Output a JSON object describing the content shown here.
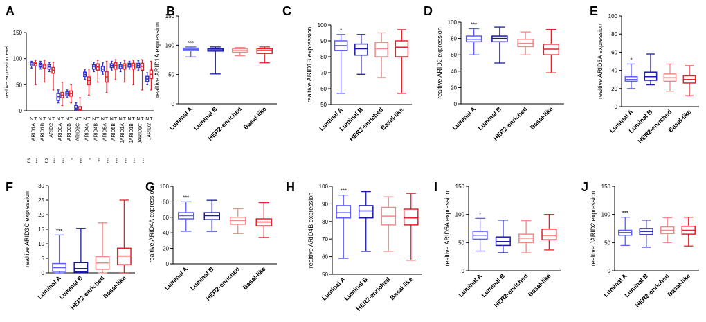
{
  "chart_data": [
    {
      "panel": "A",
      "type": "box",
      "ylabel": "realtive expression level",
      "ylim": [
        0,
        150
      ],
      "yticks": [
        0,
        50,
        100,
        150
      ],
      "genes": [
        "ARID1A",
        "ARID1B",
        "ARID2",
        "ARID3A",
        "ARID3B",
        "ARID3C",
        "ARID4A",
        "ARID4B",
        "ARID5A",
        "ARID5B",
        "JARID1A",
        "JARID1B",
        "JARID1C",
        "JARID2"
      ],
      "significance": [
        "ns",
        "***",
        "ns",
        "***",
        "***",
        "*",
        "***",
        "*",
        "**",
        "***",
        "***",
        "***",
        "***",
        "***"
      ],
      "pair_labels": [
        "N",
        "T"
      ],
      "normal": [
        {
          "min": 82,
          "q1": 86,
          "median": 89,
          "q3": 92,
          "max": 95
        },
        {
          "min": 80,
          "q1": 84,
          "median": 88,
          "q3": 91,
          "max": 95
        },
        {
          "min": 75,
          "q1": 80,
          "median": 84,
          "q3": 88,
          "max": 93
        },
        {
          "min": 15,
          "q1": 20,
          "median": 27,
          "q3": 33,
          "max": 40
        },
        {
          "min": 25,
          "q1": 29,
          "median": 32,
          "q3": 36,
          "max": 40
        },
        {
          "min": 0,
          "q1": 2,
          "median": 5,
          "q3": 10,
          "max": 15
        },
        {
          "min": 60,
          "q1": 66,
          "median": 70,
          "q3": 74,
          "max": 80
        },
        {
          "min": 75,
          "q1": 80,
          "median": 85,
          "q3": 88,
          "max": 93
        },
        {
          "min": 70,
          "q1": 76,
          "median": 80,
          "q3": 85,
          "max": 92
        },
        {
          "min": 78,
          "q1": 83,
          "median": 87,
          "q3": 90,
          "max": 95
        },
        {
          "min": 75,
          "q1": 81,
          "median": 85,
          "q3": 88,
          "max": 93
        },
        {
          "min": 80,
          "q1": 84,
          "median": 88,
          "q3": 91,
          "max": 95
        },
        {
          "min": 78,
          "q1": 83,
          "median": 87,
          "q3": 91,
          "max": 96
        },
        {
          "min": 50,
          "q1": 56,
          "median": 61,
          "q3": 66,
          "max": 73
        }
      ],
      "tumor": [
        {
          "min": 50,
          "q1": 86,
          "median": 91,
          "q3": 93,
          "max": 97
        },
        {
          "min": 55,
          "q1": 82,
          "median": 86,
          "q3": 89,
          "max": 97
        },
        {
          "min": 40,
          "q1": 72,
          "median": 78,
          "q3": 83,
          "max": 93
        },
        {
          "min": 10,
          "q1": 25,
          "median": 30,
          "q3": 35,
          "max": 55
        },
        {
          "min": 15,
          "q1": 28,
          "median": 33,
          "q3": 38,
          "max": 50
        },
        {
          "min": 0,
          "q1": 1,
          "median": 3,
          "q3": 8,
          "max": 25
        },
        {
          "min": 30,
          "q1": 50,
          "median": 58,
          "q3": 65,
          "max": 80
        },
        {
          "min": 55,
          "q1": 78,
          "median": 84,
          "q3": 90,
          "max": 97
        },
        {
          "min": 35,
          "q1": 55,
          "median": 65,
          "q3": 75,
          "max": 95
        },
        {
          "min": 60,
          "q1": 80,
          "median": 87,
          "q3": 92,
          "max": 98
        },
        {
          "min": 55,
          "q1": 80,
          "median": 86,
          "q3": 90,
          "max": 97
        },
        {
          "min": 50,
          "q1": 80,
          "median": 86,
          "q3": 91,
          "max": 97
        },
        {
          "min": 40,
          "q1": 78,
          "median": 85,
          "q3": 91,
          "max": 98
        },
        {
          "min": 40,
          "q1": 62,
          "median": 70,
          "q3": 78,
          "max": 95
        }
      ],
      "colors": {
        "normal": "#3333cc",
        "tumor": "#e8202a"
      }
    },
    {
      "panel": "B",
      "type": "box",
      "ylabel": "realtive ARID1A expression",
      "ylim": [
        0,
        150
      ],
      "yticks": [
        0,
        50,
        100,
        150
      ],
      "categories": [
        "Luminal A",
        "Luminal B",
        "HER2-enriched",
        "Basal-like"
      ],
      "significance": "***",
      "boxes": [
        {
          "min": 80,
          "q1": 91,
          "median": 93,
          "q3": 95,
          "max": 97
        },
        {
          "min": 51,
          "q1": 90,
          "median": 92,
          "q3": 94,
          "max": 97
        },
        {
          "min": 82,
          "q1": 88,
          "median": 91,
          "q3": 94,
          "max": 96
        },
        {
          "min": 70,
          "q1": 86,
          "median": 91,
          "q3": 94,
          "max": 97
        }
      ]
    },
    {
      "panel": "C",
      "type": "box",
      "ylabel": "realtive ARID1B expression",
      "ylim": [
        50,
        100
      ],
      "yticks": [
        50,
        60,
        70,
        80,
        90,
        100
      ],
      "categories": [
        "Luminal A",
        "Luminal B",
        "HER2-enriched",
        "Basal-like"
      ],
      "significance": "*",
      "boxes": [
        {
          "min": 57,
          "q1": 84,
          "median": 87,
          "q3": 90,
          "max": 94
        },
        {
          "min": 69,
          "q1": 81,
          "median": 85,
          "q3": 88,
          "max": 94
        },
        {
          "min": 67,
          "q1": 80,
          "median": 85,
          "q3": 89,
          "max": 95
        },
        {
          "min": 57,
          "q1": 80,
          "median": 86,
          "q3": 90,
          "max": 97
        }
      ]
    },
    {
      "panel": "D",
      "type": "box",
      "ylabel": "realtive ARID2 expression",
      "ylim": [
        0,
        100
      ],
      "yticks": [
        0,
        20,
        40,
        60,
        80,
        100
      ],
      "categories": [
        "Luminal A",
        "Luminal B",
        "HER2-enriched",
        "Basal-like"
      ],
      "significance": "***",
      "boxes": [
        {
          "min": 60,
          "q1": 76,
          "median": 79,
          "q3": 83,
          "max": 92
        },
        {
          "min": 50,
          "q1": 76,
          "median": 80,
          "q3": 83,
          "max": 94
        },
        {
          "min": 60,
          "q1": 70,
          "median": 74,
          "q3": 79,
          "max": 88
        },
        {
          "min": 38,
          "q1": 60,
          "median": 67,
          "q3": 73,
          "max": 91
        }
      ]
    },
    {
      "panel": "E",
      "type": "box",
      "ylabel": "realtive ARID3A expression",
      "ylim": [
        0,
        100
      ],
      "yticks": [
        0,
        20,
        40,
        60,
        80,
        100
      ],
      "categories": [
        "Luminal A",
        "Luminal B",
        "HER2-enriched",
        "Basal-like"
      ],
      "significance": "*",
      "boxes": [
        {
          "min": 20,
          "q1": 28,
          "median": 30,
          "q3": 33,
          "max": 47
        },
        {
          "min": 24,
          "q1": 29,
          "median": 33,
          "q3": 38,
          "max": 58
        },
        {
          "min": 17,
          "q1": 28,
          "median": 32,
          "q3": 36,
          "max": 47
        },
        {
          "min": 12,
          "q1": 26,
          "median": 30,
          "q3": 34,
          "max": 45
        }
      ]
    },
    {
      "panel": "F",
      "type": "box",
      "ylabel": "realtive ARID3C expression",
      "ylim": [
        0,
        30
      ],
      "yticks": [
        0,
        5,
        10,
        15,
        20,
        25,
        30
      ],
      "categories": [
        "Luminal A",
        "Luminal B",
        "HER2-enriched",
        "Basal-like"
      ],
      "significance": "***",
      "boxes": [
        {
          "min": 0,
          "q1": 0.5,
          "median": 1.8,
          "q3": 3.2,
          "max": 13
        },
        {
          "min": 0,
          "q1": 0.3,
          "median": 1.5,
          "q3": 3.5,
          "max": 15.3
        },
        {
          "min": 0,
          "q1": 1.2,
          "median": 3.4,
          "q3": 5.6,
          "max": 17.2
        },
        {
          "min": 0,
          "q1": 2.8,
          "median": 5.8,
          "q3": 8.5,
          "max": 25
        }
      ]
    },
    {
      "panel": "G",
      "type": "box",
      "ylabel": "realtive ARID4A expression",
      "ylim": [
        0,
        100
      ],
      "yticks": [
        0,
        20,
        40,
        60,
        80,
        100
      ],
      "categories": [
        "Luminal A",
        "Luminal B",
        "HER2-enriched",
        "Basal-like"
      ],
      "significance": "***",
      "boxes": [
        {
          "min": 42,
          "q1": 58,
          "median": 62,
          "q3": 66,
          "max": 80
        },
        {
          "min": 42,
          "q1": 57,
          "median": 62,
          "q3": 66,
          "max": 82
        },
        {
          "min": 39,
          "q1": 51,
          "median": 56,
          "q3": 60,
          "max": 71
        },
        {
          "min": 34,
          "q1": 49,
          "median": 54,
          "q3": 58,
          "max": 79
        }
      ]
    },
    {
      "panel": "H",
      "type": "box",
      "ylabel": "realtive ARID4B expression",
      "ylim": [
        50,
        100
      ],
      "yticks": [
        50,
        60,
        70,
        80,
        90,
        100
      ],
      "categories": [
        "Luminal A",
        "Luminal B",
        "HER2-enriched",
        "Basal-like"
      ],
      "significance": "***",
      "boxes": [
        {
          "min": 59,
          "q1": 82,
          "median": 85,
          "q3": 89,
          "max": 95
        },
        {
          "min": 63,
          "q1": 82,
          "median": 86,
          "q3": 89,
          "max": 97
        },
        {
          "min": 63,
          "q1": 78,
          "median": 83,
          "q3": 88,
          "max": 94
        },
        {
          "min": 58,
          "q1": 78,
          "median": 82,
          "q3": 87,
          "max": 96
        }
      ]
    },
    {
      "panel": "I",
      "type": "box",
      "ylabel": "realtive ARID5A expression",
      "ylim": [
        0,
        150
      ],
      "yticks": [
        0,
        50,
        100,
        150
      ],
      "categories": [
        "Luminal A",
        "Luminal B",
        "HER2-enriched",
        "Basal-like"
      ],
      "significance": "*",
      "boxes": [
        {
          "min": 35,
          "q1": 56,
          "median": 63,
          "q3": 70,
          "max": 93
        },
        {
          "min": 32,
          "q1": 45,
          "median": 52,
          "q3": 60,
          "max": 90
        },
        {
          "min": 32,
          "q1": 50,
          "median": 58,
          "q3": 65,
          "max": 89
        },
        {
          "min": 37,
          "q1": 55,
          "median": 63,
          "q3": 74,
          "max": 100
        }
      ]
    },
    {
      "panel": "J",
      "type": "box",
      "ylabel": "realtive JARID2 expression",
      "ylim": [
        0,
        150
      ],
      "yticks": [
        0,
        50,
        100,
        150
      ],
      "categories": [
        "Luminal A",
        "Luminal B",
        "HER2-enriched",
        "Basal-like"
      ],
      "significance": "***",
      "boxes": [
        {
          "min": 45,
          "q1": 63,
          "median": 68,
          "q3": 72,
          "max": 95
        },
        {
          "min": 42,
          "q1": 64,
          "median": 70,
          "q3": 75,
          "max": 90
        },
        {
          "min": 50,
          "q1": 66,
          "median": 72,
          "q3": 78,
          "max": 94
        },
        {
          "min": 44,
          "q1": 65,
          "median": 72,
          "q3": 79,
          "max": 95
        }
      ]
    }
  ],
  "subtype_colors": [
    "#5b5bff",
    "#1a1aa6",
    "#f48888",
    "#e8202a"
  ]
}
